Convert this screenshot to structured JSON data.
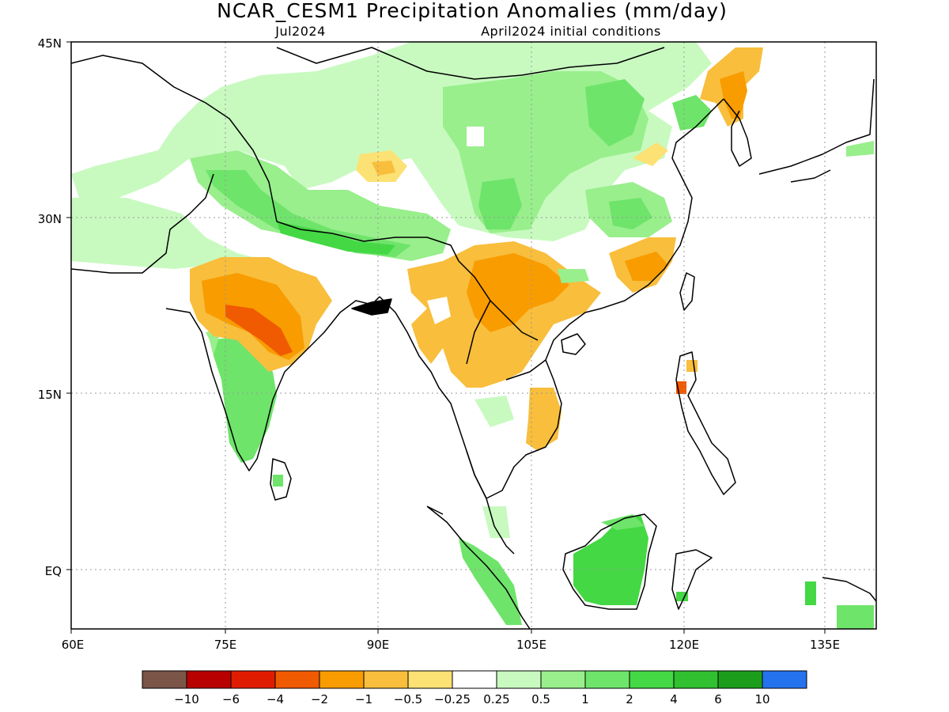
{
  "title": "NCAR_CESM1 Precipitation Anomalies (mm/day)",
  "subtitle_left": "Jul2024",
  "subtitle_right": "April2024 initial conditions",
  "lat_ticks": [
    "45N",
    "30N",
    "15N",
    "EQ"
  ],
  "lon_ticks": [
    "60E",
    "75E",
    "90E",
    "105E",
    "120E",
    "135E"
  ],
  "colorbar": {
    "colors": [
      "#7a5548",
      "#b80000",
      "#e01c00",
      "#f05a00",
      "#f89c00",
      "#f8be3c",
      "#fce174",
      "#ffffff",
      "#c8fac0",
      "#98ef8c",
      "#6ee46a",
      "#44d844",
      "#30c030",
      "#1c9e1c",
      "#2472ee"
    ],
    "labels": [
      "−10",
      "−6",
      "−4",
      "−2",
      "−1",
      "−0.5",
      "−0.25",
      "0.25",
      "0.5",
      "1",
      "2",
      "4",
      "6",
      "10"
    ]
  },
  "colors": {
    "wet_light": "#c8fac0",
    "wet_mid": "#98ef8c",
    "wet": "#6ee46a",
    "wet_strong": "#44d844",
    "wet_very": "#30c030",
    "dry_light": "#fce174",
    "dry_mid": "#f8be3c",
    "dry": "#f89c00",
    "dry_strong": "#f05a00",
    "dry_very": "#e01c00"
  }
}
